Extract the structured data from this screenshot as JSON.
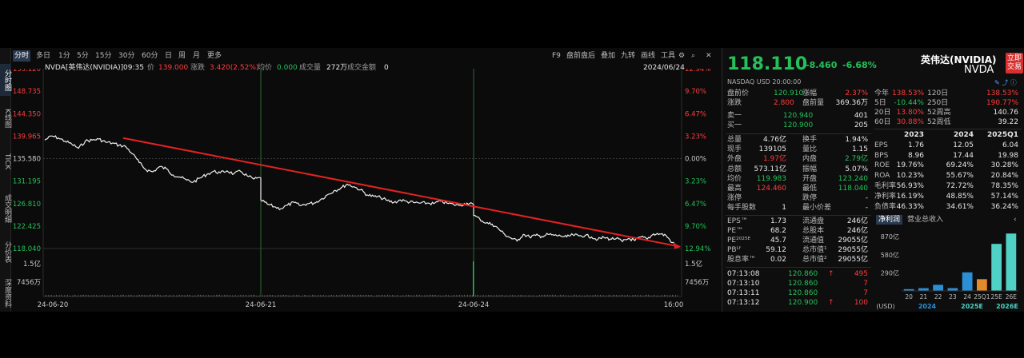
{
  "vertical_tabs": [
    "分时图",
    "K线图",
    "TICK",
    "成交明细",
    "分价表",
    "深度资料"
  ],
  "toolbar": {
    "periods": [
      "分时",
      "多日",
      "1分",
      "5分",
      "15分",
      "30分",
      "60分",
      "日",
      "周",
      "月",
      "更多"
    ],
    "right_items": [
      "F9",
      "盘前盘后",
      "叠加",
      "九转",
      "画线",
      "工具"
    ]
  },
  "chart_header": {
    "symbol": "NVDA[英伟达(NVIDIA)]",
    "time": "09:35",
    "price_label": "价",
    "price": "139.000",
    "change_label": "涨跌",
    "change": "3.420(2.52%)",
    "avg_label": "均价",
    "avg": "0.000",
    "vol_label": "成交量",
    "vol": "272万",
    "amount_label": "成交金额",
    "amount": "0",
    "date": "2024/06/24"
  },
  "chart_data": {
    "type": "line",
    "x_labels": [
      "24-06-20",
      "24-06-21",
      "24-06-24",
      "16:00"
    ],
    "y_left_ticks": [
      "153.120",
      "148.735",
      "144.350",
      "139.965",
      "135.580",
      "131.195",
      "126.810",
      "122.425",
      "118.040"
    ],
    "y_right_ticks": [
      "12.94%",
      "9.70%",
      "6.47%",
      "3.23%",
      "0.00%",
      "3.23%",
      "6.47%",
      "9.70%",
      "12.94%"
    ],
    "volume_left_ticks": [
      "1.5亿",
      "7456万"
    ],
    "volume_right_ticks": [
      "1.5亿",
      "7456万"
    ],
    "ylim": [
      118.04,
      153.12
    ],
    "prev_close": 135.58,
    "trend_line": [
      139.6,
      118.4
    ],
    "days": [
      {
        "date": "24-06-20",
        "points": [
          139.2,
          140.0,
          139.6,
          139.0,
          138.4,
          137.6,
          139.0,
          139.2,
          139.4,
          138.8,
          138.6,
          138.2,
          137.9,
          136.5,
          134.8,
          133.4,
          133.0,
          134.0,
          133.6,
          132.4,
          132.0,
          131.4,
          131.0,
          131.8,
          132.5,
          133.1,
          132.8,
          133.2,
          132.6,
          133.1,
          132.2,
          131.6,
          131.8
        ]
      },
      {
        "date": "24-06-21",
        "points": [
          127.5,
          126.7,
          126.2,
          125.8,
          126.5,
          127.0,
          126.4,
          126.8,
          126.9,
          127.6,
          128.5,
          129.3,
          129.8,
          130.6,
          130.1,
          129.5,
          128.5,
          128.2,
          128.0,
          127.4,
          127.0,
          127.5,
          127.2,
          127.0,
          126.9,
          126.9,
          126.8,
          127.3,
          126.9,
          126.6,
          126.5,
          126.9,
          126.6
        ]
      },
      {
        "date": "24-06-24",
        "points": [
          124.5,
          123.8,
          123.0,
          122.8,
          121.9,
          120.8,
          120.1,
          119.5,
          120.8,
          120.3,
          120.6,
          120.4,
          120.8,
          120.6,
          120.5,
          120.3,
          120.7,
          120.5,
          120.6,
          120.3,
          119.8,
          120.2,
          119.9,
          120.0,
          119.4,
          120.0,
          119.6,
          120.3,
          119.9,
          120.9,
          120.9,
          120.6,
          119.2,
          118.2
        ]
      }
    ]
  },
  "quote": {
    "price": "118.110",
    "change": "-8.460",
    "change_pct": "-6.68%",
    "name": "英伟达(NVIDIA)",
    "code": "NVDA",
    "trade_btn": "立即交易",
    "exchange_line": "NASDAQ  USD  20:00:00",
    "pre_price_label": "盘前价",
    "pre_price": "120.910",
    "pre_chg_pct_label": "涨幅",
    "pre_chg_pct": "2.37%",
    "pre_chg_label": "涨跌",
    "pre_chg": "2.800",
    "pre_vol_label": "盘前量",
    "pre_vol": "369.36万",
    "ask_label": "卖一",
    "ask": "120.940",
    "ask_size": "401",
    "bid_label": "买一",
    "bid": "120.900",
    "bid_size": "205"
  },
  "stats_left": [
    [
      "总量",
      "4.76亿",
      "换手",
      "1.94%"
    ],
    [
      "现手",
      "139105",
      "量比",
      "1.15"
    ],
    [
      "外盘",
      "1.97亿",
      "内盘",
      "2.79亿"
    ],
    [
      "总额",
      "573.11亿",
      "振幅",
      "5.07%"
    ],
    [
      "均价",
      "119.983",
      "开盘",
      "123.240"
    ],
    [
      "最高",
      "124.460",
      "最低",
      "118.040"
    ],
    [
      "涨停",
      "",
      "跌停",
      "-"
    ],
    [
      "每手股数",
      "1",
      "最小价差",
      "-"
    ]
  ],
  "stats_left2": [
    [
      "EPS™",
      "1.73",
      "流通盘",
      "246亿"
    ],
    [
      "PE™",
      "68.2",
      "总股本",
      "246亿"
    ],
    [
      "PE²⁰²⁵ᴱ",
      "45.7",
      "流通值",
      "29055亿"
    ],
    [
      "PBᴸᶠ",
      "59.12",
      "总市值¹",
      "29055亿"
    ],
    [
      "股息率™",
      "0.02",
      "总市值²",
      "29055亿"
    ]
  ],
  "ticks": [
    [
      "07:13:08",
      "120.860",
      "495"
    ],
    [
      "07:13:10",
      "120.860",
      "7"
    ],
    [
      "07:13:11",
      "120.860",
      "7"
    ],
    [
      "07:13:12",
      "120.900",
      "100"
    ]
  ],
  "perf": [
    [
      "今年",
      "138.53%",
      "120日",
      "138.53%"
    ],
    [
      "5日",
      "-10.44%",
      "250日",
      "190.77%"
    ],
    [
      "20日",
      "13.80%",
      "52周高",
      "140.76"
    ],
    [
      "60日",
      "30.88%",
      "52周低",
      "39.22"
    ]
  ],
  "fin_header": [
    "",
    "2023",
    "2024",
    "2025Q1"
  ],
  "fin_rows": [
    [
      "EPS",
      "1.76",
      "12.05",
      "6.04"
    ],
    [
      "BPS",
      "8.96",
      "17.44",
      "19.98"
    ],
    [
      "ROE",
      "19.76%",
      "69.24%",
      "30.28%"
    ],
    [
      "ROA",
      "10.23%",
      "55.67%",
      "20.84%"
    ],
    [
      "毛利率",
      "56.93%",
      "72.72%",
      "78.35%"
    ],
    [
      "净利率",
      "16.19%",
      "48.85%",
      "57.14%"
    ],
    [
      "负债率",
      "46.33%",
      "34.61%",
      "36.24%"
    ]
  ],
  "bar_tabs": [
    "净利润",
    "营业总收入"
  ],
  "bar_chart": {
    "y_ticks": [
      "870亿",
      "580亿",
      "290亿"
    ],
    "x_labels": [
      "20",
      "21",
      "22",
      "23",
      "24",
      "25Q1",
      "25E",
      "26E"
    ],
    "values": [
      28,
      43,
      97,
      44,
      297,
      188,
      754,
      920
    ],
    "colors": [
      "#2b8fd6",
      "#2b8fd6",
      "#2b8fd6",
      "#2b8fd6",
      "#2b8fd6",
      "#e38a2b",
      "#4fd1c5",
      "#4fd1c5"
    ],
    "group_labels": [
      "(USD)",
      "2024",
      "2025E",
      "2026E"
    ],
    "ymax": 1000
  }
}
